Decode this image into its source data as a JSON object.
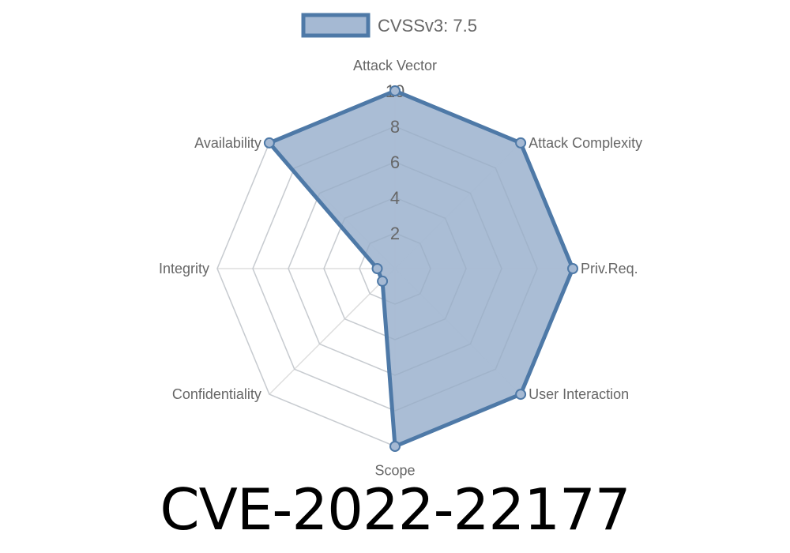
{
  "chart_data": {
    "type": "radar",
    "axes": [
      "Attack Vector",
      "Attack Complexity",
      "Priv.Req.",
      "User Interaction",
      "Scope",
      "Confidentiality",
      "Integrity",
      "Availability"
    ],
    "series": [
      {
        "name": "CVSSv3: 7.5",
        "values": [
          10,
          10,
          10,
          10,
          10,
          1,
          1,
          10
        ]
      }
    ],
    "rlim": [
      0,
      10
    ],
    "ticks": [
      "2",
      "4",
      "6",
      "8",
      "10"
    ],
    "tick_values": [
      2,
      4,
      6,
      8,
      10
    ],
    "grid": true,
    "legend": "top",
    "colors": {
      "line": "#4e79a7",
      "fill": "#a5b9d3",
      "grid": "#dddddd"
    }
  },
  "title": "CVE-2022-22177"
}
